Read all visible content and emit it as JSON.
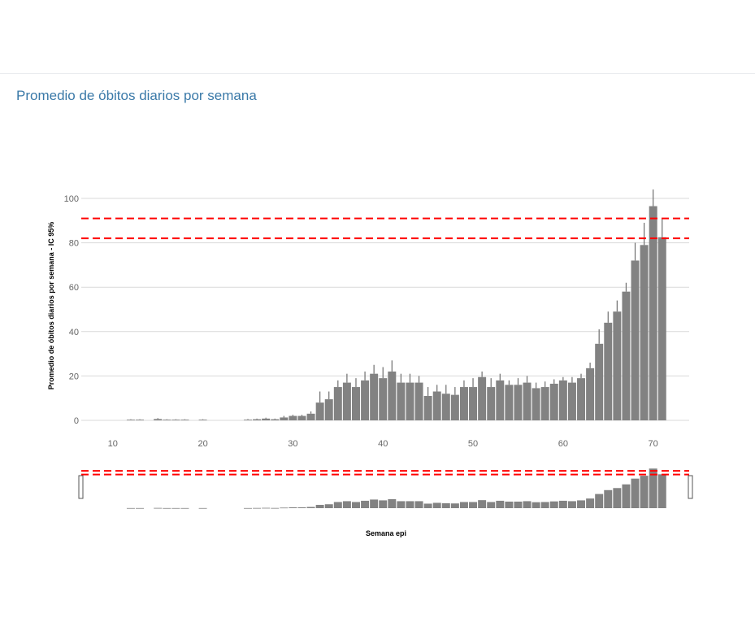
{
  "panel": {
    "title": "Promedio de óbitos diarios por semana"
  },
  "chart_data": {
    "type": "bar",
    "title": "Promedio de óbitos diarios por semana",
    "xlabel": "Semana epi",
    "ylabel": "Promedio de óbitos diarios por semana - IC 95%",
    "xlim": [
      6.5,
      74
    ],
    "ylim": [
      0,
      100
    ],
    "x_ticks": [
      10,
      20,
      30,
      40,
      50,
      60,
      70
    ],
    "y_ticks": [
      0,
      20,
      40,
      60,
      80,
      100
    ],
    "grid": true,
    "bar_color": "#828282",
    "threshold_lines": [
      {
        "value": 91,
        "color": "#ff0000",
        "style": "dashed"
      },
      {
        "value": 82,
        "color": "#ff0000",
        "style": "dashed"
      }
    ],
    "range_selector": true,
    "x": [
      12,
      13,
      15,
      16,
      17,
      18,
      20,
      25,
      26,
      27,
      28,
      29,
      30,
      31,
      32,
      33,
      34,
      35,
      36,
      37,
      38,
      39,
      40,
      41,
      42,
      43,
      44,
      45,
      46,
      47,
      48,
      49,
      50,
      51,
      52,
      53,
      54,
      55,
      56,
      57,
      58,
      59,
      60,
      61,
      62,
      63,
      64,
      65,
      66,
      67,
      68,
      69,
      70,
      71
    ],
    "values": [
      0.3,
      0.3,
      0.6,
      0.3,
      0.3,
      0.3,
      0.3,
      0.3,
      0.5,
      0.8,
      0.5,
      1.3,
      2,
      2,
      3,
      8,
      9.5,
      15,
      17,
      15,
      18,
      21,
      19,
      22,
      17,
      17,
      17,
      11,
      13,
      12,
      11.5,
      15,
      15,
      19.5,
      15,
      18,
      16,
      16,
      17,
      14.5,
      15,
      16.5,
      18,
      17,
      19,
      23.5,
      34.5,
      44,
      49,
      58,
      72,
      79,
      96.5,
      82.5
    ],
    "error_upper": [
      0.5,
      0.5,
      1,
      0.5,
      0.5,
      0.5,
      0.5,
      0.6,
      0.8,
      1.2,
      0.8,
      2,
      2.5,
      2.5,
      4,
      13,
      13,
      18,
      21,
      19,
      22,
      25,
      24,
      27,
      21,
      21,
      20,
      15,
      16,
      16,
      15,
      18,
      19,
      22,
      19,
      21,
      18,
      19,
      20,
      17,
      17.5,
      18.5,
      19.5,
      19.5,
      21,
      26,
      41,
      49,
      54,
      62,
      80,
      89,
      104,
      91
    ]
  }
}
